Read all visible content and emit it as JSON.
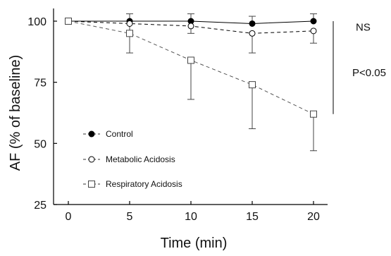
{
  "chart_data": {
    "type": "line",
    "xlabel": "Time (min)",
    "ylabel": "AF (% of baseline)",
    "x": [
      0,
      5,
      10,
      15,
      20
    ],
    "xlim": [
      0,
      20
    ],
    "ylim": [
      25,
      100
    ],
    "xticks": [
      "0",
      "5",
      "10",
      "15",
      "20"
    ],
    "yticks": [
      "25",
      "50",
      "75",
      "100"
    ],
    "grid": false,
    "legend_position": "bottom-left",
    "series": [
      {
        "name": "Control",
        "marker": "filled-circle",
        "line_style": "solid",
        "color": "#000000",
        "values": [
          100,
          100,
          100,
          99,
          100
        ],
        "error_up": [
          0,
          3,
          3,
          3,
          3
        ]
      },
      {
        "name": "Metabolic Acidosis",
        "marker": "open-circle",
        "line_style": "dashed",
        "color": "#000000",
        "values": [
          100,
          99,
          98,
          95,
          96
        ],
        "error_down": [
          0,
          3,
          3,
          8,
          5
        ]
      },
      {
        "name": "Respiratory Acidosis",
        "marker": "open-square",
        "line_style": "dashed",
        "color": "#555555",
        "values": [
          100,
          95,
          84,
          74,
          62
        ],
        "error_down": [
          0,
          8,
          16,
          18,
          15
        ]
      }
    ],
    "annotations": [
      {
        "text": "NS",
        "span": [
          95,
          100
        ]
      },
      {
        "text": "P<0.05",
        "span": [
          62,
          96
        ]
      }
    ]
  }
}
